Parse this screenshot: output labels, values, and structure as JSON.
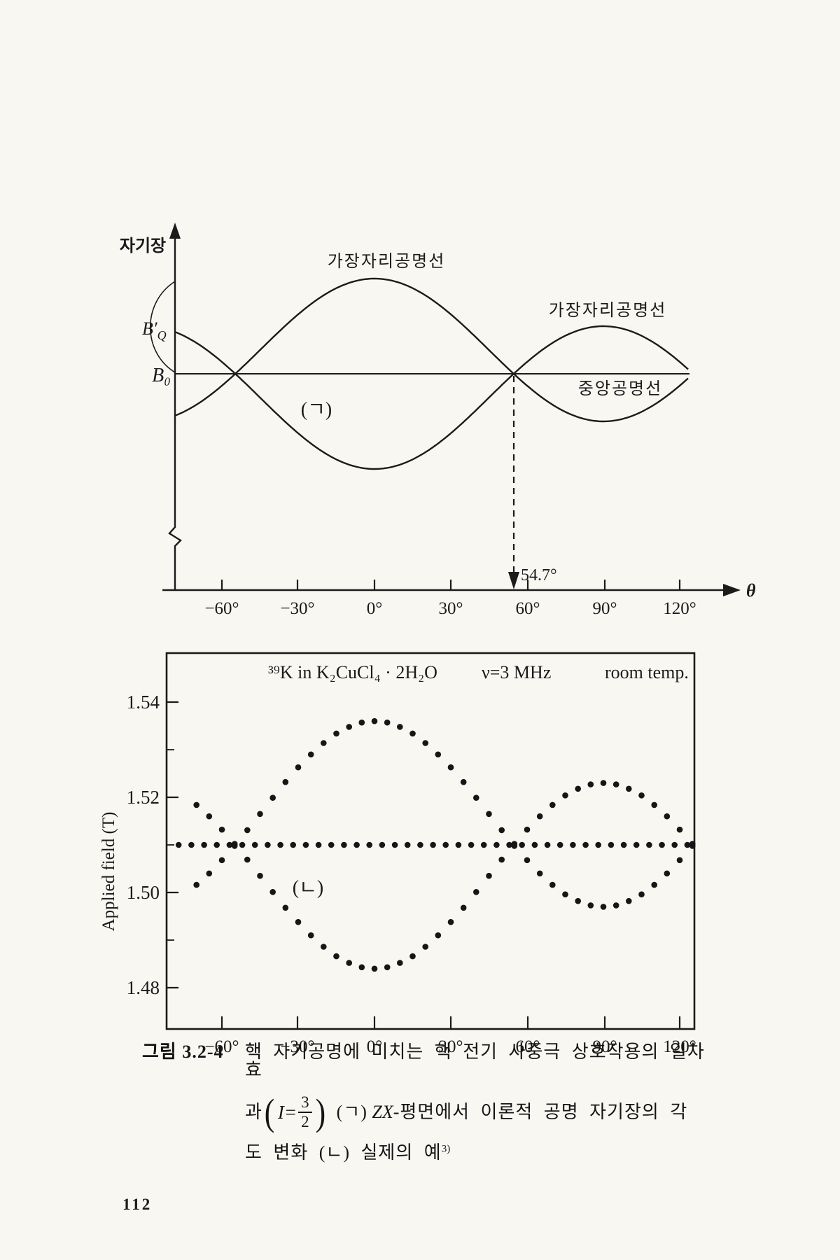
{
  "page": {
    "number": "112",
    "paper_color": "#f9f7f2",
    "ink_color": "#1b1b1b"
  },
  "caption": {
    "label": "그림 3.2-4",
    "line1": "핵 자기공명에 미치는 핵 전기 사중극 상호작용의 일차 효",
    "line2_pre": "과",
    "formula_var": "I=",
    "frac_num": "3",
    "frac_den": "2",
    "line2_mid": "(ㄱ)",
    "line2_zx": "ZX",
    "line2_rest": "-평면에서 이론적  공명  자기장의  각",
    "line3": "도 변화 (ㄴ) 실제의 예",
    "line3_sup": "3)"
  },
  "chart_data": [
    {
      "id": "theoretical-angular-dependence",
      "type": "line",
      "panel_label": "(ㄱ)",
      "ylabel": "자기장",
      "xlabel": "θ",
      "x_ticks": [
        "−60°",
        "−30°",
        "0°",
        "30°",
        "60°",
        "90°",
        "120°"
      ],
      "x_tick_values": [
        -60,
        -30,
        0,
        30,
        60,
        90,
        120
      ],
      "axis_labels": {
        "b_prime_base": "B′",
        "b_prime_sub": "Q",
        "b0": "B₀"
      },
      "curve_labels": {
        "edge_left": "가장자리공명선",
        "edge_right": "가장자리공명선",
        "center": "중앙공명선"
      },
      "magic_angle_label": "54.7°",
      "magic_angle_value": 54.7,
      "series": [
        {
          "name": "중앙공명선",
          "model": "B(θ) = B₀ (constant)"
        },
        {
          "name": "가장자리공명선 (+)",
          "model": "B(θ) = B₀ + ΔB′·(3cos²θ−1)/2"
        },
        {
          "name": "가장자리공명선 (−)",
          "model": "B(θ) = B₀ − ΔB′·(3cos²θ−1)/2"
        }
      ],
      "theta_range_deg": [
        -78,
        124
      ],
      "zero_crossings_deg": [
        -54.7,
        54.7
      ],
      "grid": false
    },
    {
      "id": "experimental-39K-K2CuCl4-2H2O",
      "type": "scatter",
      "title_parts": [
        "³⁹K in K₂CuCl₄ · 2H₂O",
        "ν=3 MHz",
        "room  temp."
      ],
      "panel_label": "(ㄴ)",
      "ylabel": "Applied field (T)",
      "xlabel": "",
      "y_ticks": [
        "1.54",
        "1.52",
        "1.50",
        "1.48"
      ],
      "y_tick_values": [
        1.54,
        1.52,
        1.5,
        1.48
      ],
      "ylim": [
        1.475,
        1.546
      ],
      "x_ticks": [
        "−60°",
        "−30°",
        "0°",
        "30°",
        "60°",
        "90°",
        "120°"
      ],
      "x_tick_values": [
        -60,
        -30,
        0,
        30,
        60,
        90,
        120
      ],
      "B0": 1.51,
      "quadrupole_amplitude": 0.026,
      "theta_deg": [
        -70,
        -65,
        -60,
        -55,
        -50,
        -45,
        -40,
        -35,
        -30,
        -25,
        -20,
        -15,
        -10,
        -5,
        0,
        5,
        10,
        15,
        20,
        25,
        30,
        35,
        40,
        45,
        50,
        55,
        60,
        65,
        70,
        75,
        80,
        85,
        90,
        95,
        100,
        105,
        110,
        115,
        120,
        125
      ],
      "series": [
        {
          "name": "중앙공명선 (center resonance)",
          "constant_value": 1.51,
          "theta_start": -77,
          "theta_end": 123,
          "theta_step": 5
        },
        {
          "name": "가장자리공명선 (satellite, upper at 0°)",
          "values": [
            1.5016,
            1.504,
            1.5068,
            1.5098,
            1.5131,
            1.5165,
            1.5199,
            1.5232,
            1.5263,
            1.529,
            1.5314,
            1.5334,
            1.5348,
            1.5357,
            1.536,
            1.5357,
            1.5348,
            1.5334,
            1.5314,
            1.529,
            1.5263,
            1.5232,
            1.5199,
            1.5165,
            1.5131,
            1.5098,
            1.5068,
            1.504,
            1.5016,
            1.4996,
            1.4982,
            1.4973,
            1.497,
            1.4973,
            1.4982,
            1.4996,
            1.5016,
            1.504,
            1.5068,
            1.5098
          ]
        },
        {
          "name": "가장자리공명선 (satellite, lower at 0°)",
          "values": [
            1.5184,
            1.516,
            1.5132,
            1.5102,
            1.5069,
            1.5035,
            1.5001,
            1.4968,
            1.4938,
            1.491,
            1.4886,
            1.4866,
            1.4852,
            1.4843,
            1.484,
            1.4843,
            1.4852,
            1.4866,
            1.4886,
            1.491,
            1.4938,
            1.4968,
            1.5001,
            1.5035,
            1.5069,
            1.5102,
            1.5132,
            1.516,
            1.5184,
            1.5204,
            1.5218,
            1.5227,
            1.523,
            1.5227,
            1.5218,
            1.5204,
            1.5184,
            1.516,
            1.5132,
            1.5102
          ]
        }
      ],
      "grid": false
    }
  ]
}
